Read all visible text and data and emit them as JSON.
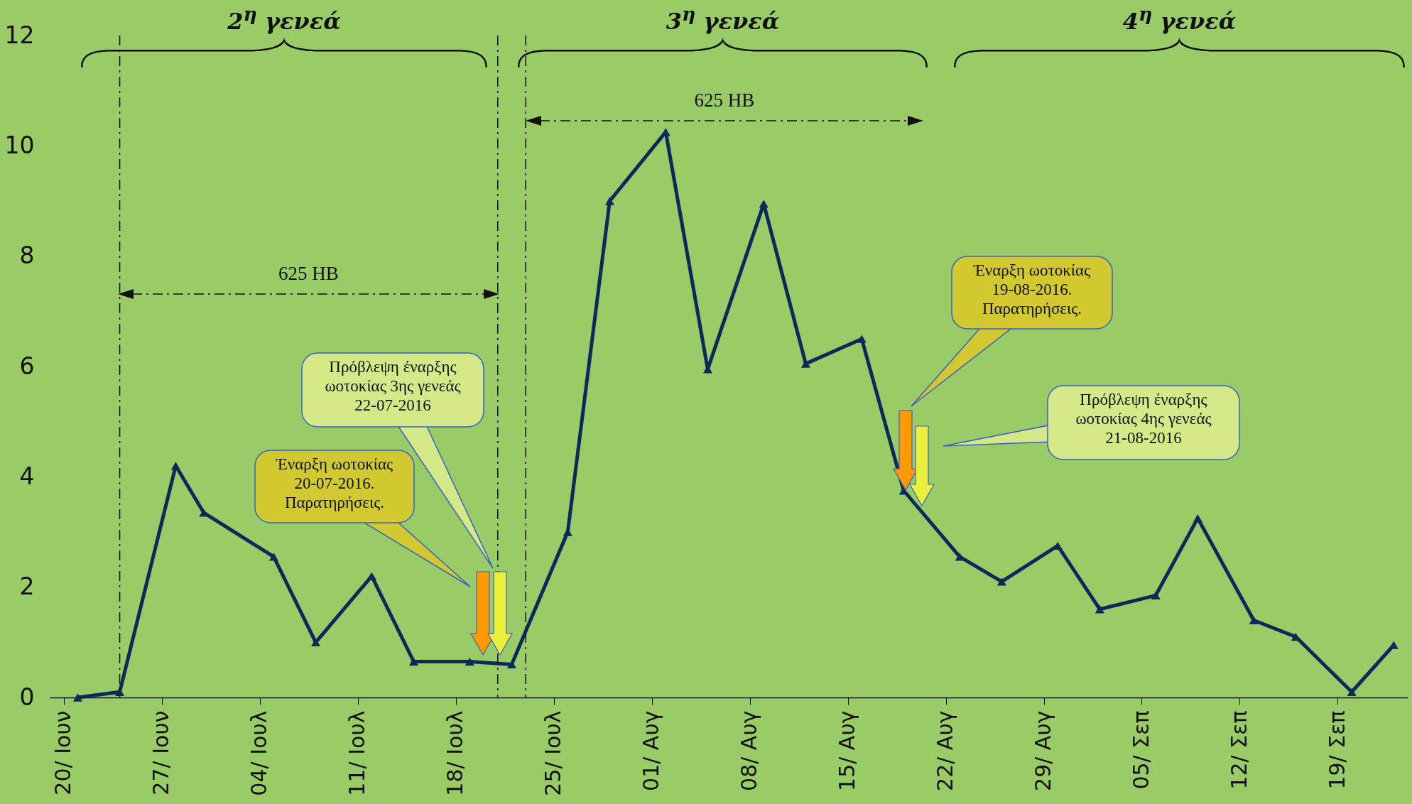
{
  "chart_data": {
    "type": "line",
    "x": [
      "2016-06-21",
      "2016-06-24",
      "2016-06-28",
      "2016-06-30",
      "2016-07-05",
      "2016-07-08",
      "2016-07-12",
      "2016-07-15",
      "2016-07-19",
      "2016-07-22",
      "2016-07-26",
      "2016-07-29",
      "2016-08-02",
      "2016-08-05",
      "2016-08-09",
      "2016-08-12",
      "2016-08-16",
      "2016-08-19",
      "2016-08-23",
      "2016-08-26",
      "2016-08-30",
      "2016-09-02",
      "2016-09-06",
      "2016-09-09",
      "2016-09-13",
      "2016-09-16",
      "2016-09-20",
      "2016-09-23"
    ],
    "series": [
      {
        "color": "#0b2a5b",
        "values": [
          0,
          0.1,
          4.2,
          3.35,
          2.55,
          1.0,
          2.2,
          0.65,
          0.65,
          0.6,
          3.0,
          9.0,
          10.25,
          5.95,
          8.95,
          6.05,
          6.5,
          3.75,
          2.55,
          2.1,
          2.75,
          1.6,
          1.85,
          3.25,
          1.4,
          1.1,
          0.1,
          0.95
        ]
      }
    ],
    "xlim": [
      "2016-06-19",
      "2016-09-24"
    ],
    "xticks": [
      {
        "value": "2016-06-20",
        "label": "20/ Ιουν"
      },
      {
        "value": "2016-06-27",
        "label": "27/ Ιουν"
      },
      {
        "value": "2016-07-04",
        "label": "04/ Ιουλ"
      },
      {
        "value": "2016-07-11",
        "label": "11/ Ιουλ"
      },
      {
        "value": "2016-07-18",
        "label": "18/ Ιουλ"
      },
      {
        "value": "2016-07-25",
        "label": "25/ Ιουλ"
      },
      {
        "value": "2016-08-01",
        "label": "01/ Αυγ"
      },
      {
        "value": "2016-08-08",
        "label": "08/ Αυγ"
      },
      {
        "value": "2016-08-15",
        "label": "15/ Αυγ"
      },
      {
        "value": "2016-08-22",
        "label": "22/ Αυγ"
      },
      {
        "value": "2016-08-29",
        "label": "29/ Αυγ"
      },
      {
        "value": "2016-09-05",
        "label": "05/ Σεπ"
      },
      {
        "value": "2016-09-12",
        "label": "12/ Σεπ"
      },
      {
        "value": "2016-09-19",
        "label": "19/ Σεπ"
      }
    ],
    "ylim": [
      0,
      12
    ],
    "yticks": [
      0,
      2,
      4,
      6,
      8,
      10,
      12
    ],
    "marker": "triangle",
    "line_style": "solid",
    "ref_lines": [
      {
        "axis": "x",
        "value": "2016-06-24",
        "line_style": "dashed"
      },
      {
        "axis": "x",
        "value": "2016-07-21",
        "line_style": "dashed"
      },
      {
        "axis": "x",
        "value": "2016-07-23",
        "line_style": "dashed"
      }
    ],
    "annotations": [
      "2$^{η}$ γενεά",
      "3$^{η}$ γενεά",
      "4$^{η}$ γενεά",
      "625 HB",
      "625 HB",
      "Έναρξη ωοτοκίας 20-07-2016. Παρατηρήσεις.",
      "Πρόβλεψη έναρξης ωοτοκίας 3ης γενεάς 22-07-2016",
      "Έναρξη ωοτοκίας 19-08-2016. Παρατηρήσεις.",
      "Πρόβλεψη έναρξης ωοτοκίας 4ης γενεάς 21-08-2016"
    ]
  }
}
